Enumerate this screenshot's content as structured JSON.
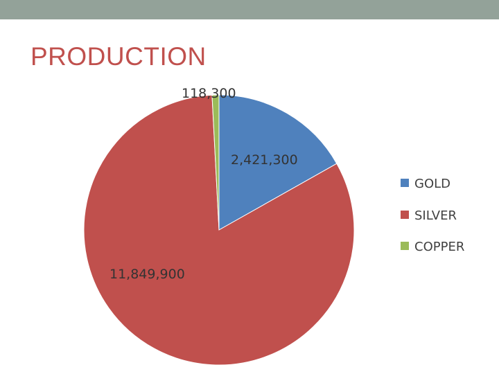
{
  "slide": {
    "title": "PRODUCTION",
    "title_color": "#c0504d",
    "top_bar_color": "#93a299"
  },
  "chart_data": {
    "type": "pie",
    "title": "",
    "categories": [
      "GOLD",
      "SILVER",
      "COPPER"
    ],
    "values": [
      2421300,
      11849900,
      118300
    ],
    "data_labels": [
      "2,421,300",
      "11,849,900",
      "118,300"
    ],
    "colors": [
      "#4f81bd",
      "#c0504d",
      "#9bbb59"
    ],
    "start_angle_deg": 0,
    "direction": "clockwise",
    "legend": {
      "position": "right",
      "entries": [
        "GOLD",
        "SILVER",
        "COPPER"
      ]
    }
  }
}
